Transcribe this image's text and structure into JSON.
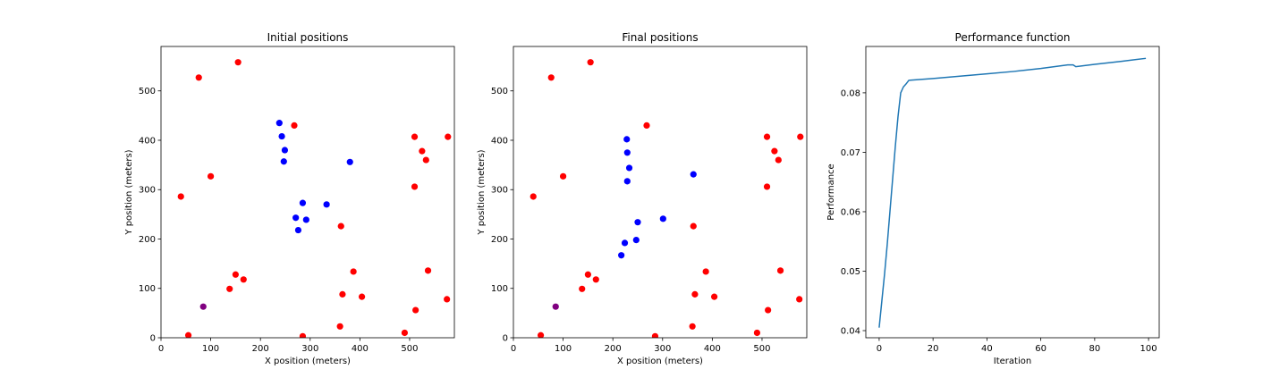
{
  "chart_data": [
    {
      "type": "scatter",
      "title": "Initial positions",
      "xlabel": "X position (meters)",
      "ylabel": "Y position (meters)",
      "xlim": [
        0,
        590
      ],
      "ylim": [
        0,
        590
      ],
      "xticks": [
        0,
        100,
        200,
        300,
        400,
        500
      ],
      "yticks": [
        0,
        100,
        200,
        300,
        400,
        500
      ],
      "grid": false,
      "series": [
        {
          "color": "#ff0000",
          "points": [
            [
              155,
              558
            ],
            [
              76,
              527
            ],
            [
              268,
              430
            ],
            [
              510,
              407
            ],
            [
              577,
              407
            ],
            [
              525,
              378
            ],
            [
              533,
              360
            ],
            [
              100,
              327
            ],
            [
              40,
              286
            ],
            [
              510,
              306
            ],
            [
              362,
              226
            ],
            [
              150,
              128
            ],
            [
              166,
              118
            ],
            [
              138,
              99
            ],
            [
              387,
              134
            ],
            [
              537,
              136
            ],
            [
              365,
              88
            ],
            [
              404,
              83
            ],
            [
              575,
              78
            ],
            [
              512,
              56
            ],
            [
              55,
              5
            ],
            [
              285,
              3
            ],
            [
              360,
              23
            ],
            [
              490,
              10
            ]
          ]
        },
        {
          "color": "#0000ff",
          "points": [
            [
              238,
              435
            ],
            [
              243,
              408
            ],
            [
              249,
              380
            ],
            [
              247,
              357
            ],
            [
              380,
              356
            ],
            [
              285,
              273
            ],
            [
              333,
              270
            ],
            [
              271,
              243
            ],
            [
              292,
              239
            ],
            [
              276,
              218
            ]
          ]
        },
        {
          "color": "#800080",
          "points": [
            [
              85,
              63
            ]
          ]
        }
      ]
    },
    {
      "type": "scatter",
      "title": "Final positions",
      "xlabel": "X position (meters)",
      "ylabel": "Y position (meters)",
      "xlim": [
        0,
        590
      ],
      "ylim": [
        0,
        590
      ],
      "xticks": [
        0,
        100,
        200,
        300,
        400,
        500
      ],
      "yticks": [
        0,
        100,
        200,
        300,
        400,
        500
      ],
      "grid": false,
      "series": [
        {
          "color": "#ff0000",
          "points": [
            [
              155,
              558
            ],
            [
              76,
              527
            ],
            [
              268,
              430
            ],
            [
              510,
              407
            ],
            [
              577,
              407
            ],
            [
              525,
              378
            ],
            [
              533,
              360
            ],
            [
              100,
              327
            ],
            [
              40,
              286
            ],
            [
              510,
              306
            ],
            [
              362,
              226
            ],
            [
              150,
              128
            ],
            [
              166,
              118
            ],
            [
              138,
              99
            ],
            [
              387,
              134
            ],
            [
              537,
              136
            ],
            [
              365,
              88
            ],
            [
              404,
              83
            ],
            [
              575,
              78
            ],
            [
              512,
              56
            ],
            [
              55,
              5
            ],
            [
              285,
              3
            ],
            [
              360,
              23
            ],
            [
              490,
              10
            ]
          ]
        },
        {
          "color": "#0000ff",
          "points": [
            [
              228,
              402
            ],
            [
              229,
              375
            ],
            [
              233,
              344
            ],
            [
              229,
              317
            ],
            [
              362,
              331
            ],
            [
              301,
              241
            ],
            [
              250,
              234
            ],
            [
              224,
              192
            ],
            [
              247,
              198
            ],
            [
              217,
              167
            ]
          ]
        },
        {
          "color": "#800080",
          "points": [
            [
              85,
              63
            ]
          ]
        }
      ]
    },
    {
      "type": "line",
      "title": "Performance function",
      "xlabel": "Iteration",
      "ylabel": "Performance",
      "xlim": [
        -4.95,
        103.95
      ],
      "ylim": [
        0.0388,
        0.0878
      ],
      "xticks": [
        0,
        20,
        40,
        60,
        80,
        100
      ],
      "yticks": [
        0.04,
        0.05,
        0.06,
        0.07,
        0.08
      ],
      "grid": false,
      "series": [
        {
          "color": "#1f77b4",
          "x": [
            0,
            1,
            2,
            3,
            4,
            5,
            6,
            7,
            8,
            9,
            10,
            11,
            20,
            30,
            40,
            50,
            60,
            65,
            70,
            72,
            73,
            80,
            90,
            99
          ],
          "y": [
            0.0405,
            0.045,
            0.0495,
            0.0545,
            0.06,
            0.0655,
            0.071,
            0.076,
            0.08,
            0.081,
            0.0815,
            0.0821,
            0.0824,
            0.0828,
            0.0832,
            0.0836,
            0.0841,
            0.0844,
            0.0847,
            0.0847,
            0.0844,
            0.0848,
            0.0853,
            0.0858
          ]
        }
      ]
    }
  ]
}
